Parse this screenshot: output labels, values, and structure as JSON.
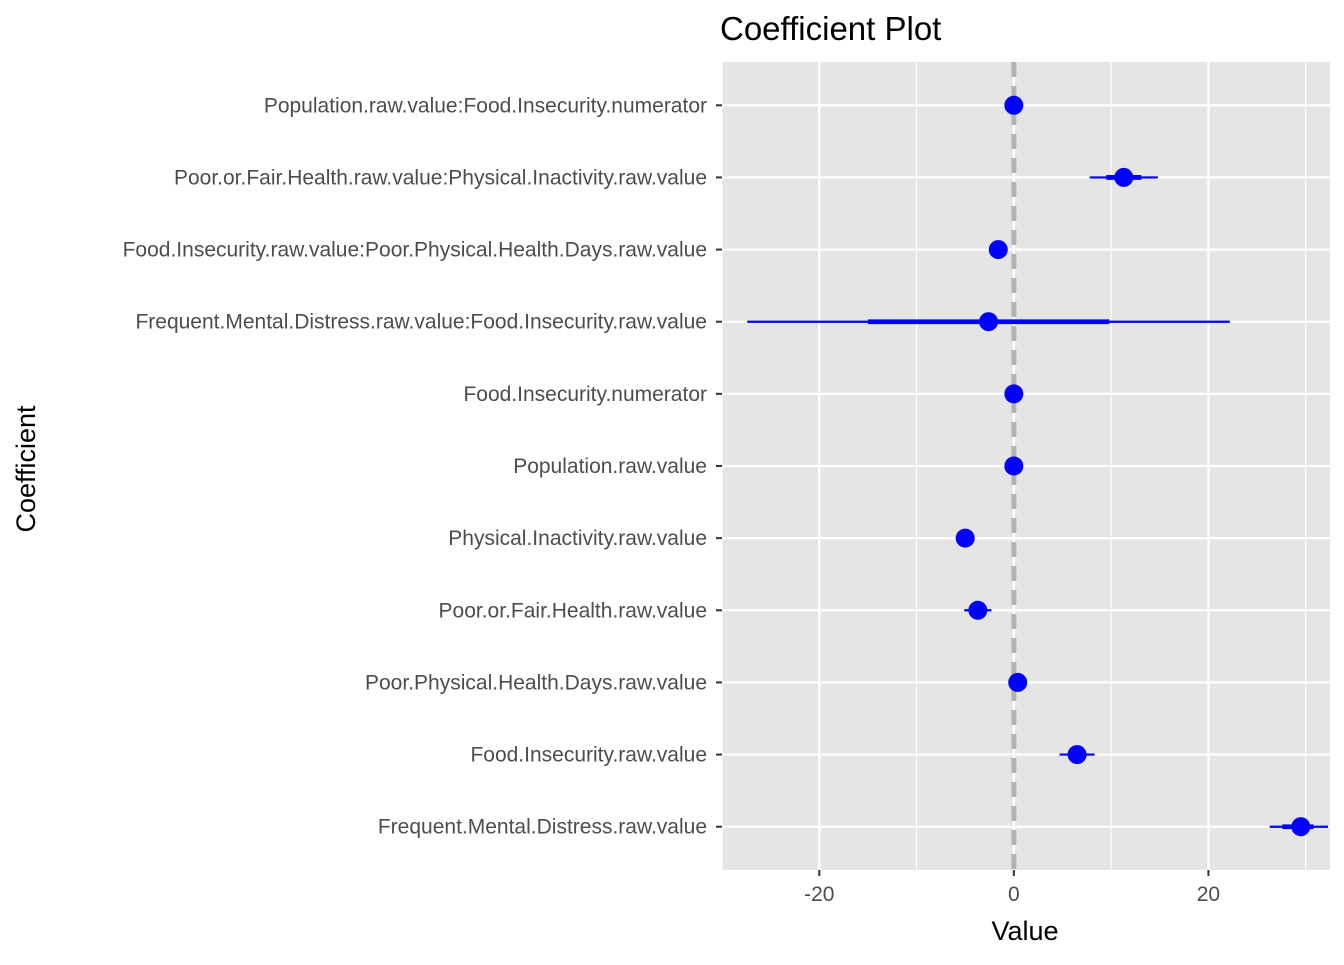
{
  "chart_data": {
    "type": "scatter",
    "subtype": "coefficient-plot",
    "title": "Coefficient Plot",
    "xlabel": "Value",
    "ylabel": "Coefficient",
    "xlim": [
      -30,
      32.5
    ],
    "x_ticks": [
      -20,
      0,
      20
    ],
    "x_tick_labels": [
      "-20",
      "0",
      "20"
    ],
    "reference_line": {
      "x": 0,
      "style": "dashed",
      "color": "#b3b3b3"
    },
    "grid": true,
    "colors": {
      "panel_background": "#e5e5e5",
      "grid": "#ffffff",
      "point": "#0000ff",
      "reference_line": "#b3b3b3",
      "tick_text": "#4d4d4d",
      "tick_mark": "#333333"
    },
    "coefficients": [
      {
        "name": "Frequent.Mental.Distress.raw.value",
        "value": 29.5,
        "inner": [
          27.6,
          30.8
        ],
        "outer": [
          26.3,
          32.3
        ]
      },
      {
        "name": "Food.Insecurity.raw.value",
        "value": 6.5,
        "inner": [
          5.6,
          7.4
        ],
        "outer": [
          4.7,
          8.3
        ]
      },
      {
        "name": "Poor.Physical.Health.Days.raw.value",
        "value": 0.4,
        "inner": [
          0.1,
          0.7
        ],
        "outer": [
          -0.2,
          1.0
        ]
      },
      {
        "name": "Poor.or.Fair.Health.raw.value",
        "value": -3.7,
        "inner": [
          -4.4,
          -3.0
        ],
        "outer": [
          -5.1,
          -2.3
        ]
      },
      {
        "name": "Physical.Inactivity.raw.value",
        "value": -5.0,
        "inner": [
          -5.3,
          -4.7
        ],
        "outer": [
          -5.6,
          -4.4
        ]
      },
      {
        "name": "Population.raw.value",
        "value": 0.0,
        "inner": [
          0.0,
          0.0
        ],
        "outer": [
          0.0,
          0.0
        ]
      },
      {
        "name": "Food.Insecurity.numerator",
        "value": 0.0,
        "inner": [
          0.0,
          0.0
        ],
        "outer": [
          0.0,
          0.0
        ]
      },
      {
        "name": "Frequent.Mental.Distress.raw.value:Food.Insecurity.raw.value",
        "value": -2.6,
        "inner": [
          -15.0,
          9.8
        ],
        "outer": [
          -27.4,
          22.2
        ]
      },
      {
        "name": "Food.Insecurity.raw.value:Poor.Physical.Health.Days.raw.value",
        "value": -1.6,
        "inner": [
          -2.0,
          -1.2
        ],
        "outer": [
          -2.4,
          -0.8
        ]
      },
      {
        "name": "Poor.or.Fair.Health.raw.value:Physical.Inactivity.raw.value",
        "value": 11.3,
        "inner": [
          9.5,
          13.1
        ],
        "outer": [
          7.8,
          14.8
        ]
      },
      {
        "name": "Population.raw.value:Food.Insecurity.numerator",
        "value": 0.0,
        "inner": [
          0.0,
          0.0
        ],
        "outer": [
          0.0,
          0.0
        ]
      }
    ]
  }
}
